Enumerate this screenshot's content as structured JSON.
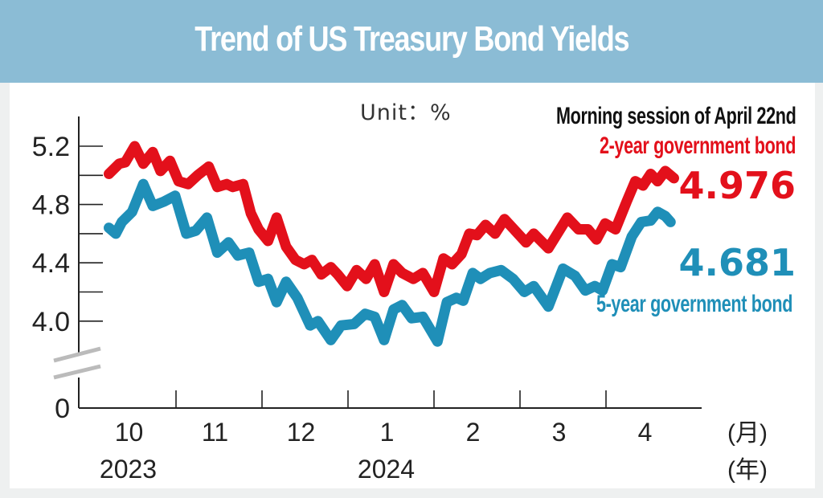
{
  "header": {
    "title": "Trend of US Treasury Bond Yields"
  },
  "annotations": {
    "unit": "Unit：%",
    "session": "Morning session of April 22nd",
    "two_year_label": "2-year government bond",
    "two_year_value": "4.976",
    "five_year_label": "5-year government bond",
    "five_year_value": "4.681"
  },
  "colors": {
    "header_bg": "#8bbcd5",
    "two_year": "#e3101b",
    "five_year": "#1f8fb8",
    "axis": "#222222",
    "axis_break": "#bbbbbb"
  },
  "chart_data": {
    "type": "line",
    "title": "Trend of US Treasury Bond Yields",
    "xlabel": "",
    "ylabel": "Unit：%",
    "x_unit_month": "(月)",
    "x_unit_year": "(年)",
    "x_tick_labels": [
      "10",
      "11",
      "12",
      "1",
      "2",
      "3",
      "4"
    ],
    "year_labels": [
      {
        "label": "2023",
        "month_index": 0
      },
      {
        "label": "2024",
        "month_index": 3
      }
    ],
    "y_tick_labels": [
      "5.2",
      "4.8",
      "4.4",
      "4.0",
      "0"
    ],
    "y_ticks": [
      5.2,
      5.0,
      4.8,
      4.6,
      4.4,
      4.2,
      4.0
    ],
    "ylim": [
      3.7,
      5.35
    ],
    "y_axis_break": true,
    "x_range_months": [
      0,
      7
    ],
    "x_note": "x values are fractional month index, 0 = start of Oct 2023",
    "series": [
      {
        "name": "2-year government bond",
        "color": "#e3101b",
        "last_value": 4.976,
        "points": [
          [
            0.22,
            5.01
          ],
          [
            0.34,
            5.08
          ],
          [
            0.41,
            5.09
          ],
          [
            0.52,
            5.2
          ],
          [
            0.62,
            5.08
          ],
          [
            0.73,
            5.16
          ],
          [
            0.82,
            5.03
          ],
          [
            0.93,
            5.1
          ],
          [
            1.03,
            4.96
          ],
          [
            1.14,
            4.94
          ],
          [
            1.25,
            5.0
          ],
          [
            1.38,
            5.06
          ],
          [
            1.48,
            4.92
          ],
          [
            1.59,
            4.94
          ],
          [
            1.66,
            4.92
          ],
          [
            1.78,
            4.94
          ],
          [
            1.87,
            4.74
          ],
          [
            1.96,
            4.63
          ],
          [
            2.07,
            4.55
          ],
          [
            2.17,
            4.71
          ],
          [
            2.28,
            4.51
          ],
          [
            2.39,
            4.42
          ],
          [
            2.49,
            4.39
          ],
          [
            2.58,
            4.42
          ],
          [
            2.69,
            4.32
          ],
          [
            2.8,
            4.37
          ],
          [
            2.88,
            4.32
          ],
          [
            2.99,
            4.24
          ],
          [
            3.1,
            4.35
          ],
          [
            3.21,
            4.29
          ],
          [
            3.31,
            4.39
          ],
          [
            3.42,
            4.2
          ],
          [
            3.53,
            4.39
          ],
          [
            3.63,
            4.33
          ],
          [
            3.76,
            4.29
          ],
          [
            3.87,
            4.33
          ],
          [
            4.0,
            4.2
          ],
          [
            4.11,
            4.43
          ],
          [
            4.21,
            4.39
          ],
          [
            4.32,
            4.46
          ],
          [
            4.41,
            4.6
          ],
          [
            4.5,
            4.59
          ],
          [
            4.6,
            4.66
          ],
          [
            4.71,
            4.6
          ],
          [
            4.82,
            4.7
          ],
          [
            4.93,
            4.63
          ],
          [
            5.07,
            4.54
          ],
          [
            5.16,
            4.6
          ],
          [
            5.33,
            4.5
          ],
          [
            5.55,
            4.71
          ],
          [
            5.68,
            4.63
          ],
          [
            5.79,
            4.63
          ],
          [
            5.89,
            4.56
          ],
          [
            5.99,
            4.67
          ],
          [
            6.11,
            4.63
          ],
          [
            6.24,
            4.82
          ],
          [
            6.34,
            4.96
          ],
          [
            6.43,
            4.93
          ],
          [
            6.52,
            5.01
          ],
          [
            6.6,
            4.96
          ],
          [
            6.69,
            5.03
          ],
          [
            6.79,
            4.98
          ]
        ]
      },
      {
        "name": "5-year government bond",
        "color": "#1f8fb8",
        "last_value": 4.681,
        "points": [
          [
            0.22,
            4.64
          ],
          [
            0.3,
            4.6
          ],
          [
            0.37,
            4.68
          ],
          [
            0.49,
            4.75
          ],
          [
            0.62,
            4.94
          ],
          [
            0.73,
            4.79
          ],
          [
            0.86,
            4.82
          ],
          [
            0.99,
            4.86
          ],
          [
            1.12,
            4.6
          ],
          [
            1.23,
            4.62
          ],
          [
            1.36,
            4.71
          ],
          [
            1.48,
            4.47
          ],
          [
            1.61,
            4.54
          ],
          [
            1.72,
            4.45
          ],
          [
            1.85,
            4.47
          ],
          [
            1.96,
            4.27
          ],
          [
            2.07,
            4.29
          ],
          [
            2.17,
            4.13
          ],
          [
            2.28,
            4.27
          ],
          [
            2.41,
            4.16
          ],
          [
            2.56,
            3.97
          ],
          [
            2.65,
            4.0
          ],
          [
            2.8,
            3.87
          ],
          [
            2.92,
            3.97
          ],
          [
            3.07,
            3.98
          ],
          [
            3.2,
            4.05
          ],
          [
            3.31,
            4.03
          ],
          [
            3.42,
            3.87
          ],
          [
            3.53,
            4.08
          ],
          [
            3.63,
            4.11
          ],
          [
            3.74,
            4.02
          ],
          [
            3.87,
            4.03
          ],
          [
            4.04,
            3.86
          ],
          [
            4.15,
            4.13
          ],
          [
            4.26,
            4.16
          ],
          [
            4.34,
            4.14
          ],
          [
            4.45,
            4.33
          ],
          [
            4.54,
            4.29
          ],
          [
            4.65,
            4.33
          ],
          [
            4.78,
            4.35
          ],
          [
            4.92,
            4.29
          ],
          [
            5.05,
            4.2
          ],
          [
            5.16,
            4.24
          ],
          [
            5.33,
            4.1
          ],
          [
            5.5,
            4.36
          ],
          [
            5.64,
            4.31
          ],
          [
            5.76,
            4.21
          ],
          [
            5.87,
            4.24
          ],
          [
            5.96,
            4.21
          ],
          [
            6.07,
            4.39
          ],
          [
            6.17,
            4.37
          ],
          [
            6.3,
            4.58
          ],
          [
            6.41,
            4.68
          ],
          [
            6.52,
            4.69
          ],
          [
            6.6,
            4.75
          ],
          [
            6.69,
            4.72
          ],
          [
            6.75,
            4.68
          ]
        ]
      }
    ],
    "legend": "right-side inline labels"
  }
}
